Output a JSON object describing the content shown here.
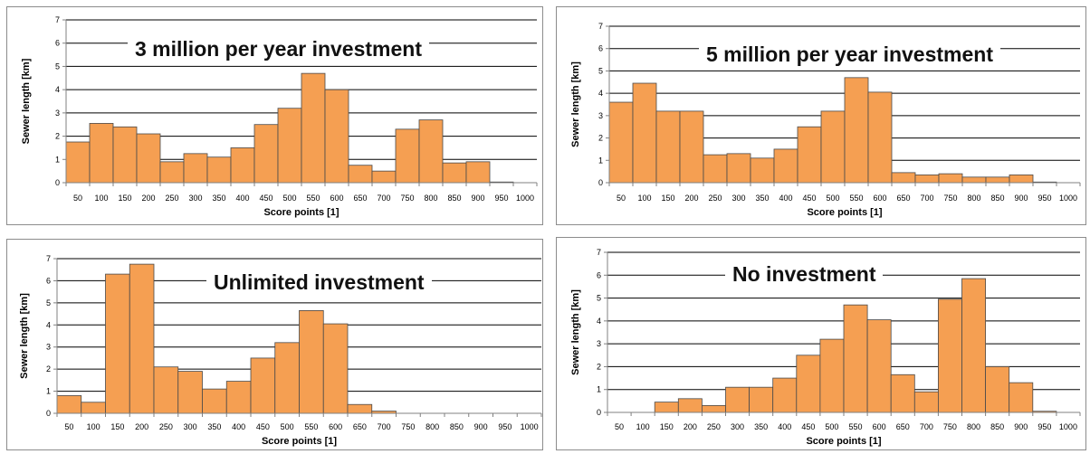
{
  "colors": {
    "bar_fill": "#f59f52",
    "bar_stroke": "#4a4a4a",
    "grid": "#000000",
    "axis": "#808080"
  },
  "chart_data": [
    {
      "type": "bar",
      "title": "3 million per year investment",
      "xlabel": "Score points [1]",
      "ylabel": "Sewer length [km]",
      "ylim": [
        0,
        7
      ],
      "yticks": [
        "0",
        "1",
        "2",
        "3",
        "4",
        "5",
        "6",
        "7"
      ],
      "grid": true,
      "categories": [
        "50",
        "100",
        "150",
        "200",
        "250",
        "300",
        "350",
        "400",
        "450",
        "500",
        "550",
        "600",
        "650",
        "700",
        "750",
        "800",
        "850",
        "900",
        "950",
        "1000"
      ],
      "values": [
        1.75,
        2.55,
        2.4,
        2.1,
        0.9,
        1.25,
        1.1,
        1.5,
        2.5,
        3.2,
        4.7,
        4.0,
        0.75,
        0.5,
        2.3,
        2.7,
        0.85,
        0.9,
        0.03,
        0
      ]
    },
    {
      "type": "bar",
      "title": "5 million per year investment",
      "xlabel": "Score points [1]",
      "ylabel": "Sewer length [km]",
      "ylim": [
        0,
        7
      ],
      "yticks": [
        "0",
        "1",
        "2",
        "3",
        "4",
        "5",
        "6",
        "7"
      ],
      "grid": true,
      "categories": [
        "50",
        "100",
        "150",
        "200",
        "250",
        "300",
        "350",
        "400",
        "450",
        "500",
        "550",
        "600",
        "650",
        "700",
        "750",
        "800",
        "850",
        "900",
        "950",
        "1000"
      ],
      "values": [
        3.6,
        4.45,
        3.2,
        3.2,
        1.25,
        1.3,
        1.1,
        1.5,
        2.5,
        3.2,
        4.7,
        4.05,
        0.45,
        0.35,
        0.4,
        0.25,
        0.25,
        0.35,
        0.03,
        0
      ]
    },
    {
      "type": "bar",
      "title": "Unlimited investment",
      "xlabel": "Score points [1]",
      "ylabel": "Sewer length [km]",
      "ylim": [
        0,
        7
      ],
      "yticks": [
        "0",
        "1",
        "2",
        "3",
        "4",
        "5",
        "6",
        "7"
      ],
      "grid": true,
      "categories": [
        "50",
        "100",
        "150",
        "200",
        "250",
        "300",
        "350",
        "400",
        "450",
        "500",
        "550",
        "600",
        "650",
        "700",
        "750",
        "800",
        "850",
        "900",
        "950",
        "1000"
      ],
      "values": [
        0.8,
        0.5,
        6.3,
        6.75,
        2.1,
        1.9,
        1.1,
        1.45,
        2.5,
        3.2,
        4.65,
        4.05,
        0.4,
        0.1,
        0,
        0,
        0,
        0,
        0,
        0
      ]
    },
    {
      "type": "bar",
      "title": "No investment",
      "xlabel": "Score points [1]",
      "ylabel": "Sewer length [km]",
      "ylim": [
        0,
        7
      ],
      "yticks": [
        "0",
        "1",
        "2",
        "3",
        "4",
        "5",
        "6",
        "7"
      ],
      "grid": true,
      "categories": [
        "50",
        "100",
        "150",
        "200",
        "250",
        "300",
        "350",
        "400",
        "450",
        "500",
        "550",
        "600",
        "650",
        "700",
        "750",
        "800",
        "850",
        "900",
        "950",
        "1000"
      ],
      "values": [
        0,
        0,
        0.45,
        0.6,
        0.3,
        1.1,
        1.1,
        1.5,
        2.5,
        3.2,
        4.7,
        4.05,
        1.65,
        0.9,
        4.95,
        5.85,
        2.0,
        1.3,
        0.05,
        0
      ]
    }
  ]
}
